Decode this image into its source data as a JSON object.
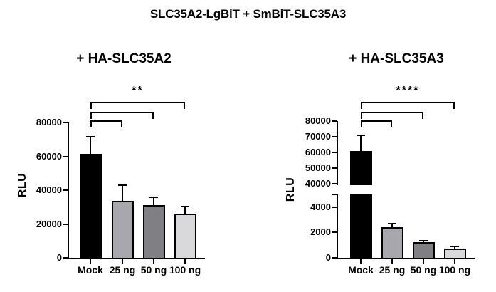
{
  "figure_title": "SLC35A2-LgBiT + SmBiT-SLC35A3",
  "chart_data": [
    {
      "type": "bar",
      "title": "+ HA-SLC35A2",
      "ylabel": "RLU",
      "categories": [
        "Mock",
        "25 ng",
        "50 ng",
        "100 ng"
      ],
      "values": [
        61500,
        33500,
        31000,
        26000
      ],
      "errors_upper": [
        10000,
        9500,
        5000,
        4500
      ],
      "bar_colors": [
        "#000000",
        "#a7a7ad",
        "#7f7f84",
        "#d9d9dc"
      ],
      "bar_border_color": "#000000",
      "axis": {
        "style": "linear",
        "ymin": 0,
        "ymax": 80000,
        "yticks": [
          0,
          20000,
          40000,
          60000,
          80000
        ]
      },
      "significance": {
        "label": "**",
        "comparisons": [
          [
            0,
            1
          ],
          [
            0,
            2
          ],
          [
            0,
            3
          ]
        ]
      },
      "grid": false
    },
    {
      "type": "bar",
      "title": "+ HA-SLC35A3",
      "ylabel": "RLU",
      "categories": [
        "Mock",
        "25 ng",
        "50 ng",
        "100 ng"
      ],
      "values": [
        61000,
        2400,
        1250,
        750
      ],
      "errors_upper": [
        10000,
        300,
        120,
        150
      ],
      "bar_colors": [
        "#000000",
        "#a7a7ad",
        "#7f7f84",
        "#d9d9dc"
      ],
      "bar_border_color": "#000000",
      "axis": {
        "style": "broken",
        "upper": {
          "ymin": 40000,
          "ymax": 80000,
          "yticks": [
            40000,
            50000,
            60000,
            70000,
            80000
          ]
        },
        "lower": {
          "ymin": 0,
          "ymax": 5000,
          "yticks": [
            0,
            2000,
            4000
          ]
        }
      },
      "significance": {
        "label": "****",
        "comparisons": [
          [
            0,
            1
          ],
          [
            0,
            2
          ],
          [
            0,
            3
          ]
        ]
      },
      "grid": false
    }
  ]
}
